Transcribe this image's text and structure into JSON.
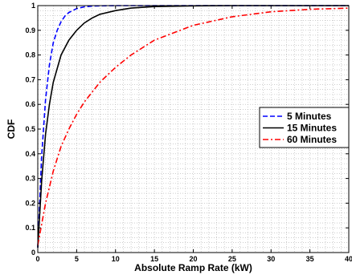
{
  "chart_data": {
    "type": "line",
    "title": "",
    "xlabel": "Absolute Ramp Rate (kW)",
    "ylabel": "CDF",
    "xlim": [
      0,
      40
    ],
    "ylim": [
      0,
      1
    ],
    "x_ticks": [
      "0",
      "5",
      "10",
      "15",
      "20",
      "25",
      "30",
      "35",
      "40"
    ],
    "y_ticks": [
      "0",
      "0.1",
      "0.2",
      "0.3",
      "0.4",
      "0.5",
      "0.6",
      "0.7",
      "0.8",
      "0.9",
      "1"
    ],
    "grid": "dotted-minor-and-major",
    "legend": "center-right",
    "series": [
      {
        "name": "5 Minutes",
        "color": "#0000ff",
        "style": "dashed",
        "x": [
          0,
          0.5,
          1,
          1.5,
          2,
          2.5,
          3,
          3.5,
          4,
          5,
          6,
          7,
          8,
          10,
          12,
          15,
          20,
          25,
          30,
          35,
          40
        ],
        "y": [
          0.02,
          0.39,
          0.62,
          0.76,
          0.85,
          0.9,
          0.935,
          0.958,
          0.972,
          0.988,
          0.995,
          0.998,
          0.999,
          1,
          1,
          1,
          1,
          1,
          1,
          1,
          1
        ]
      },
      {
        "name": "15 Minutes",
        "color": "#000000",
        "style": "solid",
        "x": [
          0,
          0.5,
          1,
          1.5,
          2,
          3,
          4,
          5,
          6,
          7,
          8,
          10,
          12,
          15,
          20,
          25,
          30,
          35,
          40
        ],
        "y": [
          0.02,
          0.29,
          0.48,
          0.6,
          0.69,
          0.8,
          0.86,
          0.9,
          0.93,
          0.95,
          0.965,
          0.98,
          0.99,
          0.996,
          0.999,
          1,
          1,
          1,
          1
        ]
      },
      {
        "name": "60 Minutes",
        "color": "#ff0000",
        "style": "dash-dot",
        "x": [
          0,
          1,
          2,
          3,
          4,
          5,
          6,
          8,
          10,
          12,
          15,
          20,
          25,
          30,
          35,
          40
        ],
        "y": [
          0.03,
          0.2,
          0.33,
          0.43,
          0.5,
          0.56,
          0.61,
          0.69,
          0.75,
          0.8,
          0.86,
          0.92,
          0.955,
          0.975,
          0.985,
          0.99
        ]
      }
    ]
  }
}
